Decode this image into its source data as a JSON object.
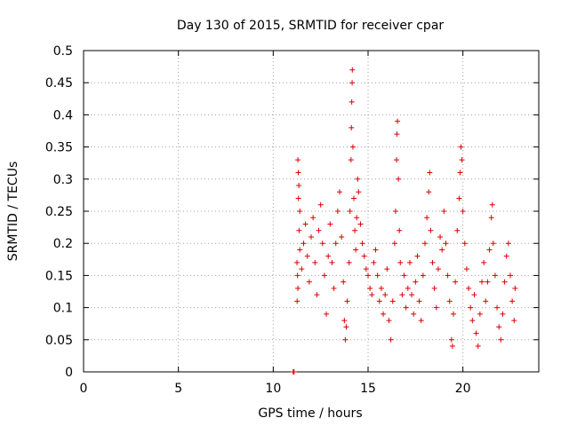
{
  "chart_data": {
    "type": "scatter",
    "title": "Day 130 of 2015, SRMTID for receiver cpar",
    "xlabel": "GPS time / hours",
    "ylabel": "SRMTID / TECUs",
    "xlim": [
      0,
      24
    ],
    "ylim": [
      0,
      0.5
    ],
    "xticks": [
      0,
      5,
      10,
      15,
      20
    ],
    "xtick_labels": [
      "0",
      "5",
      "10",
      "15",
      "20"
    ],
    "yticks": [
      0,
      0.05,
      0.1,
      0.15,
      0.2,
      0.25,
      0.3,
      0.35,
      0.4,
      0.45,
      0.5
    ],
    "ytick_labels": [
      "0",
      "0.05",
      "0.1",
      "0.15",
      "0.2",
      "0.25",
      "0.3",
      "0.35",
      "0.4",
      "0.45",
      "0.5"
    ],
    "grid": true,
    "marker": "+",
    "color": "#dd0000",
    "series": [
      {
        "name": "cpar",
        "points": [
          [
            11.05,
            0.0
          ],
          [
            11.1,
            0.0
          ],
          [
            11.3,
            0.33
          ],
          [
            11.32,
            0.31
          ],
          [
            11.35,
            0.29
          ],
          [
            11.33,
            0.27
          ],
          [
            11.4,
            0.25
          ],
          [
            11.36,
            0.22
          ],
          [
            11.25,
            0.17
          ],
          [
            11.28,
            0.15
          ],
          [
            11.3,
            0.13
          ],
          [
            11.26,
            0.11
          ],
          [
            11.4,
            0.19
          ],
          [
            11.5,
            0.16
          ],
          [
            11.6,
            0.2
          ],
          [
            11.7,
            0.23
          ],
          [
            11.8,
            0.18
          ],
          [
            11.9,
            0.14
          ],
          [
            12.0,
            0.21
          ],
          [
            12.1,
            0.24
          ],
          [
            12.2,
            0.17
          ],
          [
            12.3,
            0.12
          ],
          [
            12.4,
            0.22
          ],
          [
            12.5,
            0.26
          ],
          [
            12.6,
            0.2
          ],
          [
            12.7,
            0.15
          ],
          [
            12.8,
            0.09
          ],
          [
            12.9,
            0.18
          ],
          [
            13.0,
            0.23
          ],
          [
            13.1,
            0.17
          ],
          [
            13.2,
            0.13
          ],
          [
            13.3,
            0.2
          ],
          [
            13.4,
            0.25
          ],
          [
            13.5,
            0.28
          ],
          [
            13.6,
            0.21
          ],
          [
            13.7,
            0.14
          ],
          [
            13.75,
            0.08
          ],
          [
            13.8,
            0.05
          ],
          [
            13.85,
            0.07
          ],
          [
            13.9,
            0.11
          ],
          [
            14.0,
            0.17
          ],
          [
            14.05,
            0.25
          ],
          [
            14.1,
            0.33
          ],
          [
            14.12,
            0.38
          ],
          [
            14.14,
            0.42
          ],
          [
            14.16,
            0.45
          ],
          [
            14.17,
            0.47
          ],
          [
            14.2,
            0.35
          ],
          [
            14.25,
            0.27
          ],
          [
            14.3,
            0.22
          ],
          [
            14.35,
            0.19
          ],
          [
            14.4,
            0.24
          ],
          [
            14.45,
            0.3
          ],
          [
            14.5,
            0.28
          ],
          [
            14.6,
            0.23
          ],
          [
            14.7,
            0.2
          ],
          [
            14.8,
            0.18
          ],
          [
            14.9,
            0.16
          ],
          [
            15.0,
            0.15
          ],
          [
            15.1,
            0.13
          ],
          [
            15.2,
            0.12
          ],
          [
            15.3,
            0.17
          ],
          [
            15.4,
            0.19
          ],
          [
            15.5,
            0.15
          ],
          [
            15.6,
            0.11
          ],
          [
            15.7,
            0.13
          ],
          [
            15.8,
            0.09
          ],
          [
            15.9,
            0.12
          ],
          [
            16.0,
            0.16
          ],
          [
            16.1,
            0.08
          ],
          [
            16.2,
            0.05
          ],
          [
            16.3,
            0.11
          ],
          [
            16.4,
            0.2
          ],
          [
            16.45,
            0.25
          ],
          [
            16.5,
            0.33
          ],
          [
            16.52,
            0.37
          ],
          [
            16.55,
            0.39
          ],
          [
            16.6,
            0.3
          ],
          [
            16.65,
            0.22
          ],
          [
            16.7,
            0.17
          ],
          [
            16.8,
            0.12
          ],
          [
            16.9,
            0.15
          ],
          [
            17.0,
            0.1
          ],
          [
            17.1,
            0.13
          ],
          [
            17.2,
            0.17
          ],
          [
            17.3,
            0.12
          ],
          [
            17.4,
            0.09
          ],
          [
            17.5,
            0.14
          ],
          [
            17.6,
            0.18
          ],
          [
            17.7,
            0.11
          ],
          [
            17.8,
            0.08
          ],
          [
            17.9,
            0.15
          ],
          [
            18.0,
            0.2
          ],
          [
            18.1,
            0.24
          ],
          [
            18.2,
            0.28
          ],
          [
            18.25,
            0.31
          ],
          [
            18.3,
            0.22
          ],
          [
            18.4,
            0.17
          ],
          [
            18.5,
            0.13
          ],
          [
            18.6,
            0.1
          ],
          [
            18.7,
            0.16
          ],
          [
            18.8,
            0.21
          ],
          [
            18.9,
            0.19
          ],
          [
            19.0,
            0.25
          ],
          [
            19.1,
            0.2
          ],
          [
            19.2,
            0.15
          ],
          [
            19.3,
            0.11
          ],
          [
            19.4,
            0.05
          ],
          [
            19.45,
            0.04
          ],
          [
            19.5,
            0.09
          ],
          [
            19.6,
            0.14
          ],
          [
            19.7,
            0.22
          ],
          [
            19.8,
            0.27
          ],
          [
            19.85,
            0.31
          ],
          [
            19.9,
            0.35
          ],
          [
            19.95,
            0.33
          ],
          [
            20.0,
            0.25
          ],
          [
            20.1,
            0.2
          ],
          [
            20.2,
            0.16
          ],
          [
            20.3,
            0.13
          ],
          [
            20.4,
            0.1
          ],
          [
            20.5,
            0.08
          ],
          [
            20.6,
            0.12
          ],
          [
            20.7,
            0.06
          ],
          [
            20.8,
            0.04
          ],
          [
            20.9,
            0.09
          ],
          [
            21.0,
            0.14
          ],
          [
            21.1,
            0.17
          ],
          [
            21.2,
            0.11
          ],
          [
            21.3,
            0.14
          ],
          [
            21.4,
            0.19
          ],
          [
            21.5,
            0.24
          ],
          [
            21.55,
            0.26
          ],
          [
            21.6,
            0.2
          ],
          [
            21.7,
            0.15
          ],
          [
            21.8,
            0.1
          ],
          [
            21.9,
            0.07
          ],
          [
            22.0,
            0.05
          ],
          [
            22.1,
            0.09
          ],
          [
            22.2,
            0.14
          ],
          [
            22.3,
            0.18
          ],
          [
            22.4,
            0.2
          ],
          [
            22.5,
            0.15
          ],
          [
            22.6,
            0.11
          ],
          [
            22.7,
            0.08
          ],
          [
            22.75,
            0.13
          ]
        ]
      }
    ]
  }
}
